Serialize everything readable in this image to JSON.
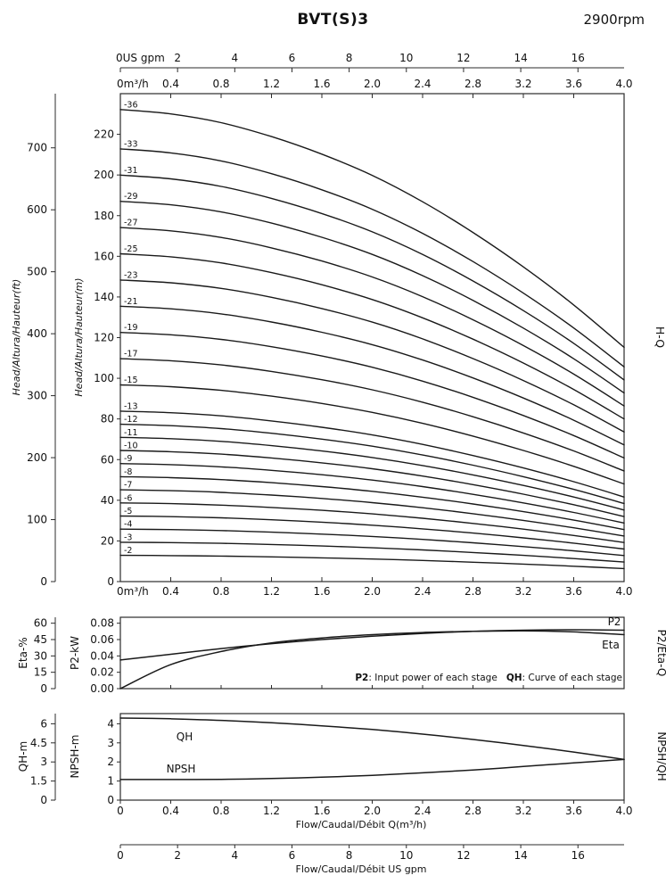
{
  "header": {
    "title": "BVT(S)3",
    "rpm": "2900rpm"
  },
  "colors": {
    "curve": "#1a1a1a",
    "axis": "#2b2b2b",
    "background": "#ffffff"
  },
  "chart_data": [
    {
      "id": "hq",
      "type": "line",
      "name": "H-Q",
      "right_label": "H-Q",
      "x_m3h": [
        0,
        0.4,
        0.8,
        1.2,
        1.6,
        2.0,
        2.4,
        2.8,
        3.2,
        3.6,
        4.0
      ],
      "axes": {
        "top_gpm": {
          "unit": "US gpm",
          "ticks": [
            0,
            2,
            4,
            6,
            8,
            10,
            12,
            14,
            16
          ]
        },
        "m3h_top": {
          "unit": "m³/h",
          "ticks": [
            "0",
            "0.4",
            "0.8",
            "1.2",
            "1.6",
            "2.0",
            "2.4",
            "2.8",
            "3.2",
            "3.6",
            "4.0"
          ]
        },
        "m3h_bottom": {
          "unit": "m³/h",
          "ticks": [
            "0",
            "0.4",
            "0.8",
            "1.2",
            "1.6",
            "2.0",
            "2.4",
            "2.8",
            "3.2",
            "3.6",
            "4.0"
          ]
        },
        "head_ft": {
          "label": "Head/Altura/Hauteur(ft)",
          "ticks": [
            0,
            100,
            200,
            300,
            400,
            500,
            600,
            700
          ]
        },
        "head_m": {
          "label": "Head/Altura/Hauteur(m)",
          "ticks": [
            0,
            20,
            40,
            60,
            80,
            100,
            120,
            140,
            160,
            180,
            200,
            220
          ],
          "max": 240
        }
      },
      "stages": [
        36,
        33,
        31,
        29,
        27,
        25,
        23,
        21,
        19,
        17,
        15,
        13,
        12,
        11,
        10,
        9,
        8,
        7,
        6,
        5,
        4,
        3,
        2
      ],
      "stage_label_prefix": "-",
      "head_per_stage_m": [
        6.45,
        6.39,
        6.27,
        6.08,
        5.84,
        5.55,
        5.19,
        4.77,
        4.3,
        3.78,
        3.2
      ]
    },
    {
      "id": "p2eta",
      "type": "line",
      "name": "P2/Eta-Q",
      "right_label": "P2/Eta-Q",
      "x_m3h": [
        0,
        0.4,
        0.8,
        1.2,
        1.6,
        2.0,
        2.4,
        2.8,
        3.2,
        3.6,
        4.0
      ],
      "axes": {
        "eta": {
          "label": "Eta-%",
          "ticks": [
            0,
            15,
            30,
            45,
            60
          ],
          "max": 65.45
        },
        "p2": {
          "label": "P2-kW",
          "ticks": [
            "0.00",
            "0.02",
            "0.04",
            "0.06",
            "0.08"
          ],
          "max": 0.08727
        }
      },
      "series": [
        {
          "name": "P2",
          "axis": "p2",
          "values": [
            0.035,
            0.042,
            0.049,
            0.055,
            0.06,
            0.064,
            0.0675,
            0.07,
            0.0715,
            0.072,
            0.0715
          ]
        },
        {
          "name": "Eta",
          "axis": "eta",
          "values": [
            0,
            22,
            34,
            42,
            46.5,
            49.5,
            51.5,
            52.5,
            53,
            52,
            49.5
          ]
        }
      ],
      "note": {
        "p2_term": "P2",
        "p2_desc": ": Input power of each stage",
        "qh_term": "QH",
        "qh_desc": ": Curve of each stage"
      }
    },
    {
      "id": "npshqh",
      "type": "line",
      "name": "NPSH/QH",
      "right_label": "NPSH/QH",
      "x_m3h": [
        0,
        0.4,
        0.8,
        1.2,
        1.6,
        2.0,
        2.4,
        2.8,
        3.2,
        3.6,
        4.0
      ],
      "axes": {
        "qh": {
          "label": "QH-m",
          "ticks": [
            "0",
            "1.5",
            "3",
            "4.5",
            "6"
          ],
          "max": 6.8
        },
        "npsh": {
          "label": "NPSH-m",
          "ticks": [
            0,
            1,
            2,
            3,
            4
          ],
          "max": 4.533
        },
        "x_m3h": {
          "label": "Flow/Caudal/Débit Q(m³/h)",
          "ticks": [
            "0",
            "0.4",
            "0.8",
            "1.2",
            "1.6",
            "2.0",
            "2.4",
            "2.8",
            "3.2",
            "3.6",
            "4.0"
          ]
        },
        "x_gpm": {
          "label": "Flow/Caudal/Débit  US gpm",
          "ticks": [
            0,
            2,
            4,
            6,
            8,
            10,
            12,
            14,
            16
          ]
        }
      },
      "series": [
        {
          "name": "QH",
          "axis": "qh",
          "values": [
            6.45,
            6.39,
            6.27,
            6.08,
            5.84,
            5.55,
            5.19,
            4.77,
            4.3,
            3.78,
            3.2
          ]
        },
        {
          "name": "NPSH",
          "axis": "npsh",
          "values": [
            1.08,
            1.08,
            1.09,
            1.13,
            1.2,
            1.3,
            1.43,
            1.58,
            1.76,
            1.95,
            2.13
          ]
        }
      ]
    }
  ]
}
